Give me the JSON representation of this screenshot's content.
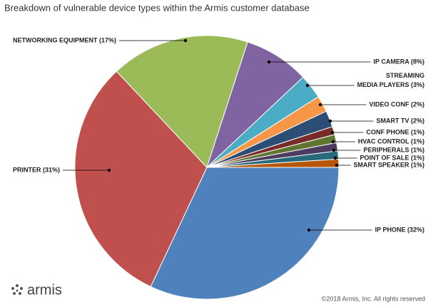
{
  "chart_data": {
    "type": "pie",
    "title": "Breakdown of vulnerable device types within the Armis customer database",
    "categories": [
      "IP PHONE (32%)",
      "PRINTER (31%)",
      "NETWORKING EQUIPMENT (17%)",
      "IP CAMERA (8%)",
      "STREAMING\nMEDIA PLAYERS (3%)",
      "VIDEO CONF (2%)",
      "SMART TV (2%)",
      "CONF PHONE (1%)",
      "HVAC CONTROL (1%)",
      "PERIPHERALS (1%)",
      "POINT OF SALE (1%)",
      "SMART SPEAKER (1%)"
    ],
    "values": [
      32,
      31,
      17,
      8,
      3,
      2,
      2,
      1,
      1,
      1,
      1,
      1
    ],
    "colors": [
      "#4f81bd",
      "#c0504d",
      "#9bbb59",
      "#8064a2",
      "#4bacc6",
      "#f79646",
      "#2c4d75",
      "#772c2a",
      "#5f7530",
      "#4d3b62",
      "#276a7c",
      "#b65708"
    ],
    "logo": "armis",
    "copyright": "©2018 Armis, Inc. All rights reserved"
  }
}
